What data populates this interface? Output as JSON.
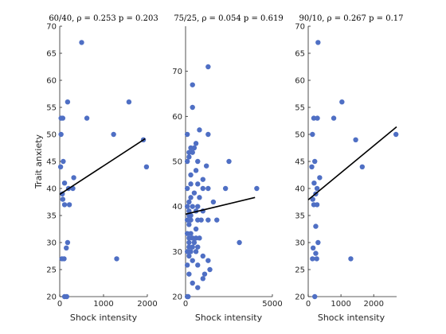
{
  "chart_data": [
    {
      "type": "scatter",
      "title": "60/40, ρ = 0.253  p = 0.203",
      "xlabel": "Shock intensity",
      "ylabel": "Trait anxiety",
      "xlim": [
        0,
        2000
      ],
      "ylim": [
        20,
        70
      ],
      "xticks": [
        0,
        1000,
        2000
      ],
      "yticks": [
        20,
        25,
        30,
        35,
        40,
        45,
        50,
        55,
        60,
        65,
        70
      ],
      "grid": false,
      "points": [
        [
          500,
          67
        ],
        [
          180,
          56
        ],
        [
          30,
          53
        ],
        [
          70,
          53
        ],
        [
          620,
          53
        ],
        [
          1580,
          56
        ],
        [
          1230,
          50
        ],
        [
          1910,
          49
        ],
        [
          30,
          50
        ],
        [
          80,
          45
        ],
        [
          1980,
          44
        ],
        [
          20,
          44
        ],
        [
          320,
          42
        ],
        [
          110,
          41
        ],
        [
          200,
          40
        ],
        [
          300,
          40
        ],
        [
          60,
          39
        ],
        [
          70,
          38
        ],
        [
          110,
          37
        ],
        [
          220,
          37
        ],
        [
          180,
          30
        ],
        [
          150,
          29
        ],
        [
          50,
          27
        ],
        [
          100,
          27
        ],
        [
          1300,
          27
        ],
        [
          110,
          20
        ],
        [
          160,
          20
        ]
      ],
      "fit_line": {
        "x": [
          0,
          1950
        ],
        "y": [
          38.9,
          49.2
        ]
      }
    },
    {
      "type": "scatter",
      "title": "75/25, ρ = 0.054  p = 0.619",
      "xlabel": "Shock intensity",
      "ylabel": "",
      "xlim": [
        0,
        5000
      ],
      "ylim": [
        20,
        80
      ],
      "xticks": [
        0,
        5000
      ],
      "yticks": [
        20,
        30,
        40,
        50,
        60,
        70
      ],
      "grid": false,
      "points": [
        [
          1300,
          71
        ],
        [
          400,
          67
        ],
        [
          400,
          62
        ],
        [
          800,
          57
        ],
        [
          100,
          56
        ],
        [
          1300,
          56
        ],
        [
          600,
          54
        ],
        [
          300,
          53
        ],
        [
          500,
          53
        ],
        [
          200,
          52
        ],
        [
          400,
          52
        ],
        [
          200,
          51
        ],
        [
          100,
          50
        ],
        [
          700,
          50
        ],
        [
          2500,
          50
        ],
        [
          1200,
          49
        ],
        [
          600,
          48
        ],
        [
          300,
          47
        ],
        [
          1000,
          46
        ],
        [
          300,
          45
        ],
        [
          700,
          45
        ],
        [
          1300,
          44
        ],
        [
          100,
          44
        ],
        [
          1000,
          44
        ],
        [
          2300,
          44
        ],
        [
          4100,
          44
        ],
        [
          500,
          43
        ],
        [
          300,
          42
        ],
        [
          800,
          42
        ],
        [
          200,
          41
        ],
        [
          1600,
          41
        ],
        [
          100,
          40
        ],
        [
          400,
          40
        ],
        [
          700,
          40
        ],
        [
          200,
          39
        ],
        [
          600,
          39
        ],
        [
          1000,
          39
        ],
        [
          200,
          38
        ],
        [
          300,
          38
        ],
        [
          100,
          37
        ],
        [
          300,
          37
        ],
        [
          700,
          37
        ],
        [
          900,
          37
        ],
        [
          1300,
          37
        ],
        [
          1800,
          37
        ],
        [
          200,
          36
        ],
        [
          600,
          35
        ],
        [
          100,
          34
        ],
        [
          300,
          34
        ],
        [
          400,
          33
        ],
        [
          200,
          33
        ],
        [
          600,
          33
        ],
        [
          800,
          33
        ],
        [
          200,
          32
        ],
        [
          500,
          32
        ],
        [
          3100,
          32
        ],
        [
          200,
          31
        ],
        [
          400,
          31
        ],
        [
          700,
          31
        ],
        [
          100,
          30
        ],
        [
          300,
          30
        ],
        [
          600,
          30
        ],
        [
          200,
          29
        ],
        [
          1000,
          29
        ],
        [
          400,
          28
        ],
        [
          1300,
          28
        ],
        [
          100,
          27
        ],
        [
          700,
          27
        ],
        [
          1400,
          26
        ],
        [
          200,
          25
        ],
        [
          1100,
          25
        ],
        [
          1000,
          24
        ],
        [
          400,
          23
        ],
        [
          700,
          22
        ],
        [
          100,
          20
        ],
        [
          150,
          20
        ]
      ],
      "fit_line": {
        "x": [
          0,
          4000
        ],
        "y": [
          38.3,
          42
        ]
      }
    },
    {
      "type": "scatter",
      "title": "90/10, ρ = 0.267  p = 0.17",
      "xlabel": "Shock intensity",
      "ylabel": "",
      "xlim": [
        0,
        2700
      ],
      "ylim": [
        20,
        70
      ],
      "xticks": [
        0,
        1000,
        2000
      ],
      "yticks": [
        20,
        25,
        30,
        35,
        40,
        45,
        50,
        55,
        60,
        65,
        70
      ],
      "grid": false,
      "points": [
        [
          300,
          67
        ],
        [
          1030,
          56
        ],
        [
          170,
          53
        ],
        [
          280,
          53
        ],
        [
          780,
          53
        ],
        [
          130,
          50
        ],
        [
          2680,
          50
        ],
        [
          1450,
          49
        ],
        [
          200,
          45
        ],
        [
          110,
          44
        ],
        [
          1650,
          44
        ],
        [
          350,
          42
        ],
        [
          180,
          41
        ],
        [
          270,
          40
        ],
        [
          230,
          39
        ],
        [
          140,
          38
        ],
        [
          170,
          37
        ],
        [
          270,
          37
        ],
        [
          230,
          33
        ],
        [
          300,
          30
        ],
        [
          150,
          29
        ],
        [
          230,
          28
        ],
        [
          130,
          27
        ],
        [
          260,
          27
        ],
        [
          1300,
          27
        ],
        [
          200,
          20
        ]
      ],
      "fit_line": {
        "x": [
          0,
          2700
        ],
        "y": [
          37.9,
          51.4
        ]
      }
    }
  ],
  "colors": {
    "marker": "#4f6fc4",
    "fit_line": "#000000",
    "axis": "#262626"
  }
}
